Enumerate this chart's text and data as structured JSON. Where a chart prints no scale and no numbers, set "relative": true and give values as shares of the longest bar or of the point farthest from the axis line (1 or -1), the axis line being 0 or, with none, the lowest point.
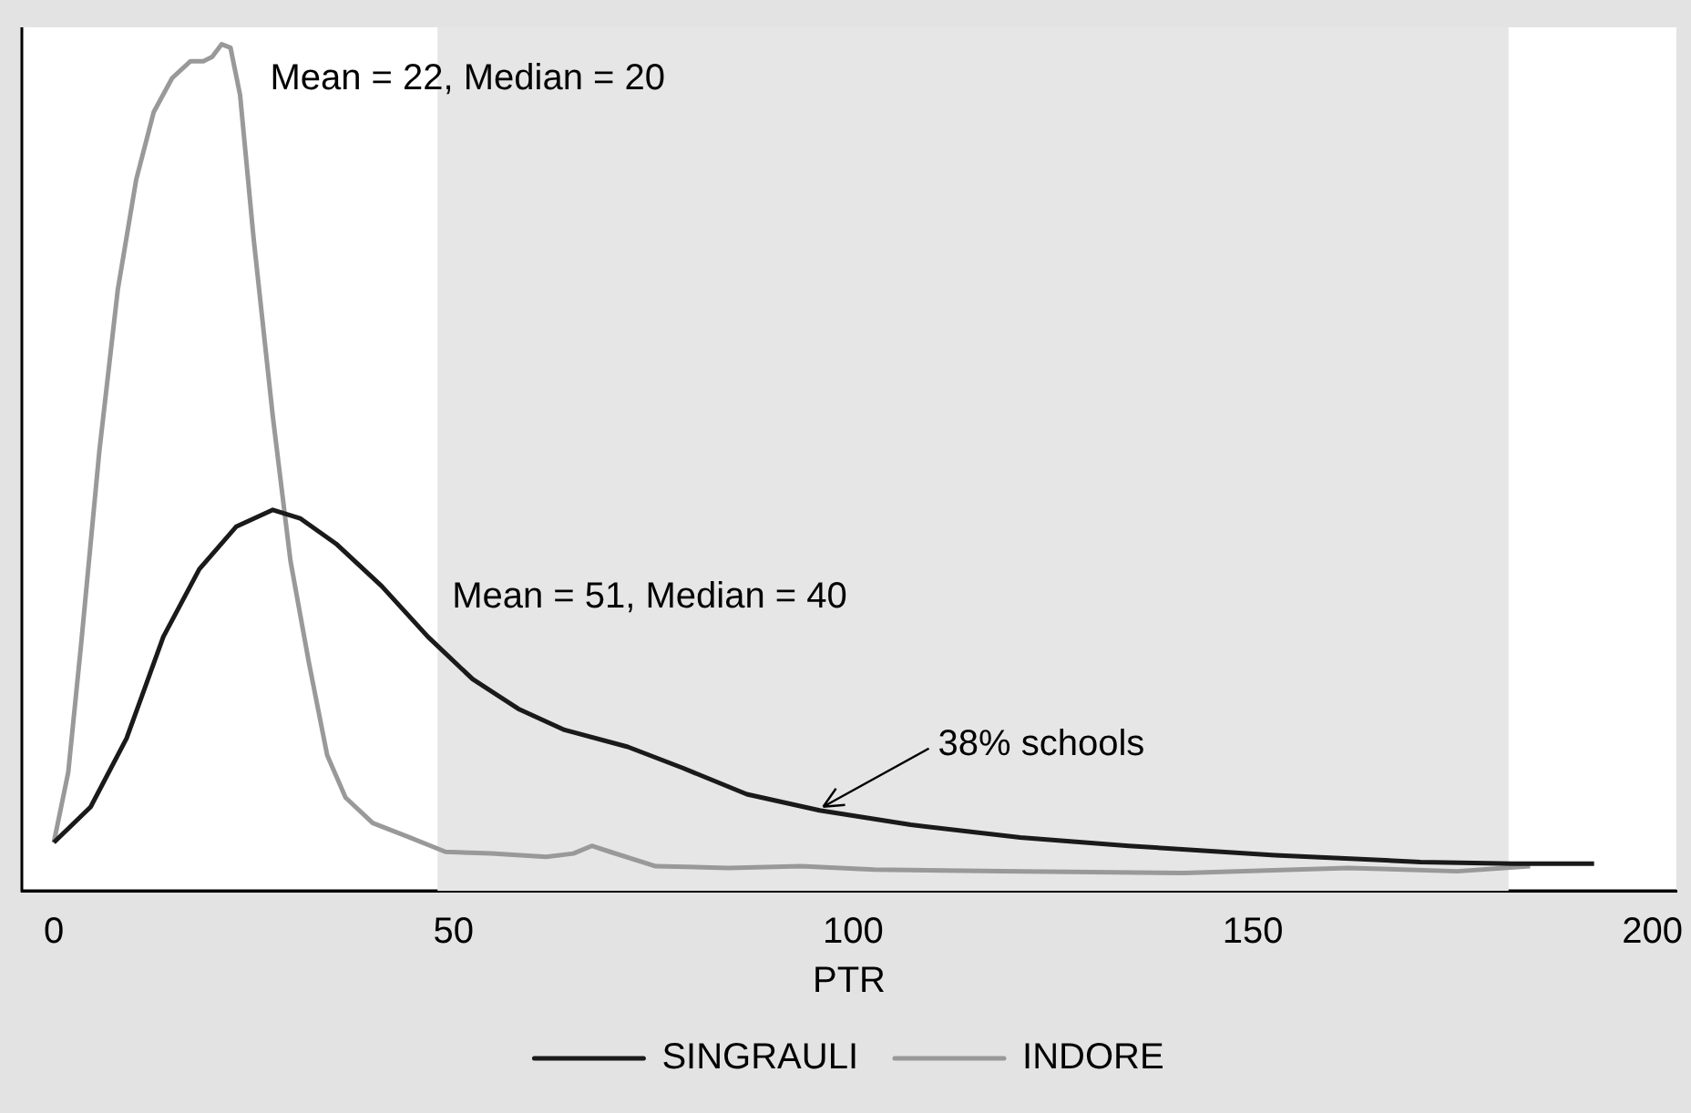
{
  "chart_data": {
    "type": "line",
    "relative": true,
    "xlabel": "PTR",
    "xlim": [
      -4,
      203
    ],
    "xticks": [
      0,
      50,
      100,
      150,
      200
    ],
    "grid": false,
    "legend": "bottom",
    "marker": "none",
    "line_style": "solid",
    "series": [
      {
        "name": "SINGRAULI",
        "color": "#1a1a1a",
        "x": [
          0,
          4.6,
          9.1,
          13.7,
          18.2,
          22.8,
          27.4,
          30.8,
          35.3,
          41,
          46.8,
          52.4,
          58.1,
          63.9,
          71.8,
          78.7,
          86.7,
          95.8,
          107.2,
          120.9,
          134.5,
          152.8,
          171,
          182.4,
          192.7
        ],
        "values": [
          0.057,
          0.099,
          0.18,
          0.3,
          0.38,
          0.43,
          0.45,
          0.44,
          0.41,
          0.36,
          0.3,
          0.25,
          0.215,
          0.19,
          0.17,
          0.145,
          0.114,
          0.095,
          0.078,
          0.063,
          0.053,
          0.042,
          0.034,
          0.032,
          0.032
        ]
      },
      {
        "name": "INDORE",
        "color": "#999999",
        "x": [
          0,
          1.8,
          3.4,
          5.7,
          8,
          10.3,
          12.5,
          14.8,
          17.1,
          18.7,
          19.8,
          21,
          22.1,
          23.3,
          25,
          27.4,
          29.6,
          31.9,
          34.2,
          36.5,
          39.9,
          44.5,
          49,
          54.7,
          61.6,
          65,
          67.3,
          69.6,
          75.3,
          84.4,
          93.5,
          102.6,
          118.6,
          141.4,
          161.9,
          175.6,
          184.7
        ],
        "values": [
          0.057,
          0.14,
          0.29,
          0.52,
          0.71,
          0.84,
          0.92,
          0.96,
          0.98,
          0.98,
          0.985,
          1,
          0.996,
          0.94,
          0.77,
          0.56,
          0.39,
          0.27,
          0.16,
          0.11,
          0.08,
          0.063,
          0.046,
          0.044,
          0.04,
          0.044,
          0.053,
          0.046,
          0.029,
          0.027,
          0.029,
          0.025,
          0.023,
          0.021,
          0.027,
          0.023,
          0.029
        ]
      }
    ],
    "bands": [
      {
        "axis": "x",
        "from": 48,
        "to": 182,
        "color": "#e6e6e6"
      }
    ],
    "annotations": [
      "Mean = 22, Median = 20",
      "Mean = 51, Median = 40",
      {
        "text": "38% schools",
        "x": 95.8,
        "y": 0.095
      }
    ]
  }
}
